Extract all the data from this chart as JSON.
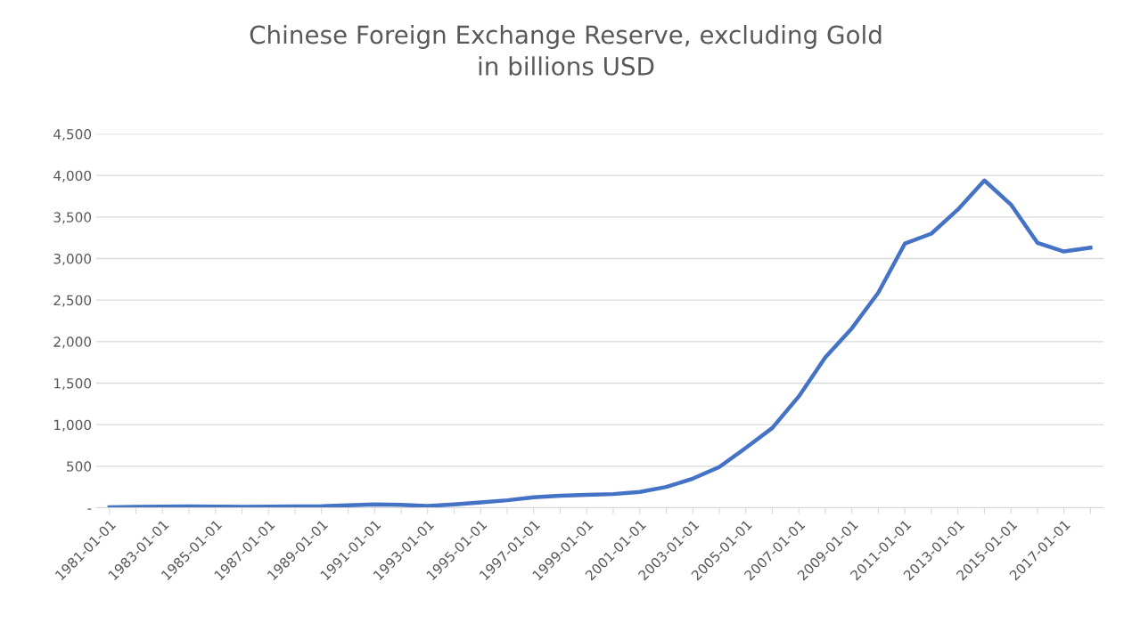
{
  "chart_data": {
    "type": "line",
    "title": "Chinese Foreign Exchange Reserve, excluding Gold\nin billions USD",
    "categories": [
      "1981-01-01",
      null,
      "1983-01-01",
      null,
      "1985-01-01",
      null,
      "1987-01-01",
      null,
      "1989-01-01",
      null,
      "1991-01-01",
      null,
      "1993-01-01",
      null,
      "1995-01-01",
      null,
      "1997-01-01",
      null,
      "1999-01-01",
      null,
      "2001-01-01",
      null,
      "2003-01-01",
      null,
      "2005-01-01",
      null,
      "2007-01-01",
      null,
      "2009-01-01",
      null,
      "2011-01-01",
      null,
      "2013-01-01",
      null,
      "2015-01-01",
      null,
      "2017-01-01",
      null
    ],
    "series": [
      {
        "color": "#4472c4",
        "values": [
          5,
          10,
          14,
          17,
          15,
          12,
          15,
          17,
          18,
          30,
          40,
          35,
          22,
          40,
          65,
          90,
          125,
          145,
          155,
          165,
          190,
          250,
          350,
          490,
          720,
          960,
          1340,
          1810,
          2160,
          2590,
          3180,
          3300,
          3590,
          3940,
          3650,
          3190,
          3085,
          3130
        ]
      }
    ],
    "ylim": [
      0,
      4500
    ],
    "yticks": [
      {
        "value": 0,
        "label": "-"
      },
      {
        "value": 500,
        "label": "500"
      },
      {
        "value": 1000,
        "label": "1,000"
      },
      {
        "value": 1500,
        "label": "1,500"
      },
      {
        "value": 2000,
        "label": "2,000"
      },
      {
        "value": 2500,
        "label": "2,500"
      },
      {
        "value": 3000,
        "label": "3,000"
      },
      {
        "value": 3500,
        "label": "3,500"
      },
      {
        "value": 4000,
        "label": "4,000"
      },
      {
        "value": 4500,
        "label": "4,500"
      }
    ],
    "grid": "y",
    "marker": "none",
    "line_style": "solid"
  }
}
